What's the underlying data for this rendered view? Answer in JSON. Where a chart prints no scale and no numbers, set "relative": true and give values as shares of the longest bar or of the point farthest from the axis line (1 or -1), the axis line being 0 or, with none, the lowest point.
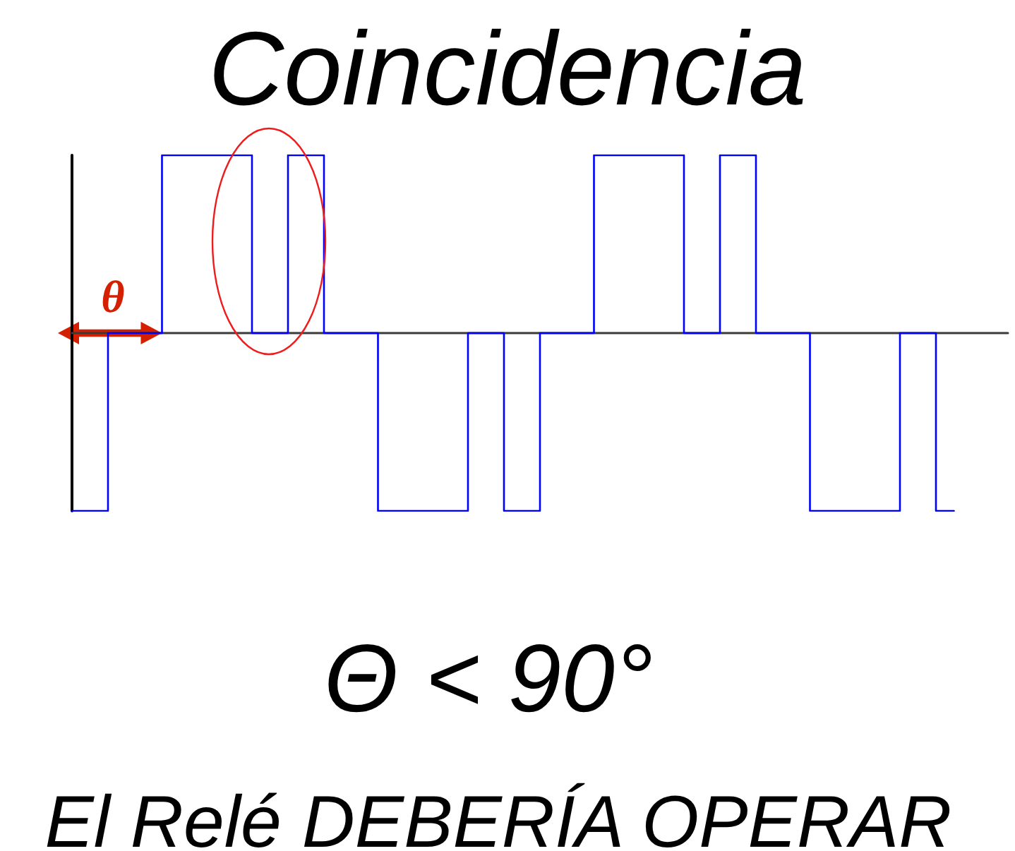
{
  "chart_data": {
    "type": "step",
    "title": "Coincidencia",
    "categories": [
      null,
      null,
      null,
      null,
      null,
      null,
      null,
      null,
      null,
      null,
      null,
      null,
      null,
      null,
      null,
      null,
      null,
      null,
      null,
      null,
      null,
      null,
      null,
      null,
      null,
      null,
      null,
      null,
      null,
      null,
      null,
      null,
      null,
      null,
      null,
      null,
      null,
      null,
      null,
      null,
      null,
      null,
      null,
      null,
      null,
      null,
      null,
      null,
      null,
      null,
      null,
      null,
      null
    ],
    "values": [
      -1,
      -1,
      -1,
      0,
      0,
      0,
      1,
      1,
      1,
      1,
      1,
      0,
      0,
      1,
      1,
      0,
      0,
      0,
      -1,
      -1,
      -1,
      -1,
      -1,
      0,
      0,
      -1,
      -1,
      0,
      0,
      0,
      1,
      1,
      1,
      1,
      1,
      0,
      0,
      1,
      1,
      0,
      0,
      0,
      -1,
      -1,
      -1,
      -1,
      -1,
      0,
      0,
      -1,
      null,
      null,
      null
    ],
    "color": "#0000ff",
    "relative": true,
    "marker": "none",
    "annotations": [
      "θ",
      "Θ < 90°",
      "El Relé DEBERÍA OPERAR"
    ]
  }
}
